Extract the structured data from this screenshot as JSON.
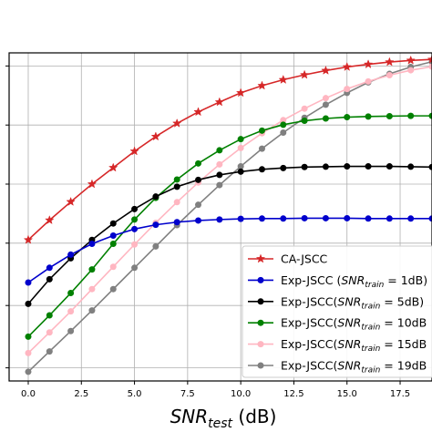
{
  "chart_data": {
    "type": "line",
    "xlabel": "SNR_test (dB)",
    "xlabel_parts": {
      "main": "SNR",
      "sub": "test",
      "unit": " (dB)"
    },
    "ylabel": "",
    "xlim": [
      -0.9,
      19.0
    ],
    "ylim": [
      0,
      1
    ],
    "grid": true,
    "legend_position": "lower-right",
    "x_ticks": [
      "0.0",
      "2.5",
      "5.0",
      "7.5",
      "10.0",
      "12.5",
      "15.0",
      "17.5"
    ],
    "x": [
      0,
      1,
      2,
      3,
      4,
      5,
      6,
      7,
      8,
      9,
      10,
      11,
      12,
      13,
      14,
      15,
      16,
      17,
      18,
      19
    ],
    "series": [
      {
        "name": "CA-JSCC",
        "legend_prefix": "CA-JSCC",
        "color": "#d62728",
        "marker": "star",
        "values": [
          0.43,
          0.49,
          0.546,
          0.6,
          0.65,
          0.7,
          0.745,
          0.785,
          0.82,
          0.85,
          0.878,
          0.9,
          0.918,
          0.933,
          0.946,
          0.957,
          0.965,
          0.972,
          0.977,
          0.98
        ]
      },
      {
        "name": "Exp-JSCC (SNR_train = 1dB)",
        "legend_prefix": "Exp-JSCC (",
        "legend_math": "SNR",
        "legend_sub": "train",
        "legend_suffix": " = 1dB)",
        "color": "#0000cc",
        "marker": "circle",
        "values": [
          0.3,
          0.345,
          0.385,
          0.418,
          0.443,
          0.463,
          0.476,
          0.484,
          0.489,
          0.492,
          0.494,
          0.495,
          0.495,
          0.496,
          0.496,
          0.496,
          0.495,
          0.495,
          0.495,
          0.495
        ]
      },
      {
        "name": "Exp-JSCC(SNR_train = 5dB)",
        "legend_prefix": "Exp-JSCC(",
        "legend_math": "SNR",
        "legend_sub": "train",
        "legend_suffix": " = 5dB)",
        "color": "#000000",
        "marker": "circle",
        "values": [
          0.235,
          0.31,
          0.374,
          0.43,
          0.48,
          0.524,
          0.562,
          0.592,
          0.613,
          0.628,
          0.638,
          0.645,
          0.649,
          0.652,
          0.653,
          0.654,
          0.654,
          0.654,
          0.653,
          0.652
        ]
      },
      {
        "name": "Exp-JSCC(SNR_train = 10dB)",
        "legend_prefix": "Exp-JSCC(",
        "legend_math": "SNR",
        "legend_sub": "train",
        "legend_suffix": " = 10dB",
        "color": "#008000",
        "marker": "circle",
        "values": [
          0.135,
          0.2,
          0.268,
          0.34,
          0.418,
          0.492,
          0.558,
          0.614,
          0.663,
          0.703,
          0.737,
          0.763,
          0.781,
          0.793,
          0.8,
          0.804,
          0.806,
          0.807,
          0.808,
          0.808
        ]
      },
      {
        "name": "Exp-JSCC(SNR_train = 15dB",
        "legend_prefix": "Exp-JSCC(",
        "legend_math": "SNR",
        "legend_sub": "train",
        "legend_suffix": " = 15dB",
        "color": "#ffb6c1",
        "marker": "circle",
        "values": [
          0.085,
          0.148,
          0.212,
          0.28,
          0.348,
          0.416,
          0.482,
          0.545,
          0.605,
          0.66,
          0.71,
          0.755,
          0.795,
          0.83,
          0.862,
          0.89,
          0.913,
          0.932,
          0.947,
          0.958
        ]
      },
      {
        "name": "Exp-JSCC(SNR_train = 19dB",
        "legend_prefix": "Exp-JSCC(",
        "legend_math": "SNR",
        "legend_sub": "train",
        "legend_suffix": " = 19dB",
        "color": "#808080",
        "marker": "circle",
        "values": [
          0.028,
          0.09,
          0.152,
          0.215,
          0.28,
          0.345,
          0.41,
          0.475,
          0.537,
          0.597,
          0.654,
          0.708,
          0.757,
          0.802,
          0.842,
          0.878,
          0.91,
          0.936,
          0.957,
          0.973
        ]
      }
    ]
  }
}
